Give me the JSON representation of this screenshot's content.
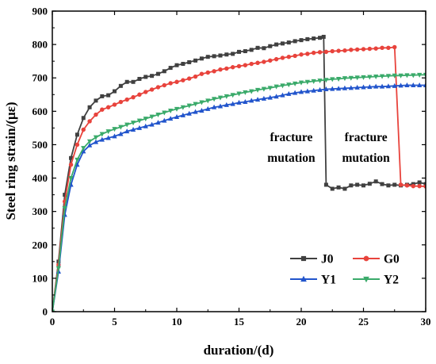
{
  "chart_data": {
    "type": "line",
    "xlabel": "duration/(d)",
    "ylabel": "Steel ring strain/(με)",
    "xlim": [
      0,
      30
    ],
    "ylim": [
      0,
      900
    ],
    "xticks": [
      0,
      5,
      10,
      15,
      20,
      25,
      30
    ],
    "yticks": [
      0,
      100,
      200,
      300,
      400,
      500,
      600,
      700,
      800,
      900
    ],
    "legend_position": "bottom-right",
    "grid": false,
    "annotations": [
      {
        "lines": [
          "fracture",
          "mutation"
        ],
        "x": 19.2,
        "y": 510
      },
      {
        "lines": [
          "fracture",
          "mutation"
        ],
        "x": 25.2,
        "y": 510
      }
    ],
    "series": [
      {
        "name": "J0",
        "color": "#404040",
        "marker": "square",
        "points": [
          [
            0,
            0
          ],
          [
            0.5,
            150
          ],
          [
            1,
            350
          ],
          [
            1.5,
            460
          ],
          [
            2,
            530
          ],
          [
            2.5,
            580
          ],
          [
            3,
            612
          ],
          [
            3.5,
            632
          ],
          [
            4,
            645
          ],
          [
            4.5,
            648
          ],
          [
            5,
            660
          ],
          [
            5.5,
            676
          ],
          [
            6,
            688
          ],
          [
            6.5,
            688
          ],
          [
            7,
            697
          ],
          [
            7.5,
            703
          ],
          [
            8,
            706
          ],
          [
            8.5,
            712
          ],
          [
            9,
            720
          ],
          [
            9.5,
            730
          ],
          [
            10,
            738
          ],
          [
            10.5,
            742
          ],
          [
            11,
            747
          ],
          [
            11.5,
            752
          ],
          [
            12,
            758
          ],
          [
            12.5,
            763
          ],
          [
            13,
            765
          ],
          [
            13.5,
            767
          ],
          [
            14,
            770
          ],
          [
            14.5,
            772
          ],
          [
            15,
            778
          ],
          [
            15.5,
            780
          ],
          [
            16,
            784
          ],
          [
            16.5,
            790
          ],
          [
            17,
            789
          ],
          [
            17.5,
            795
          ],
          [
            18,
            800
          ],
          [
            18.5,
            803
          ],
          [
            19,
            806
          ],
          [
            19.5,
            810
          ],
          [
            20,
            813
          ],
          [
            20.5,
            816
          ],
          [
            21,
            818
          ],
          [
            21.5,
            820
          ],
          [
            21.8,
            823
          ],
          [
            22,
            380
          ],
          [
            22.5,
            368
          ],
          [
            23,
            372
          ],
          [
            23.5,
            368
          ],
          [
            24,
            378
          ],
          [
            24.5,
            380
          ],
          [
            25,
            378
          ],
          [
            25.5,
            383
          ],
          [
            26,
            390
          ],
          [
            26.5,
            382
          ],
          [
            27,
            378
          ],
          [
            27.5,
            380
          ],
          [
            28,
            378
          ],
          [
            28.5,
            380
          ],
          [
            29,
            382
          ],
          [
            29.5,
            387
          ],
          [
            30,
            382
          ]
        ]
      },
      {
        "name": "G0",
        "color": "#e8433c",
        "marker": "circle",
        "points": [
          [
            0,
            0
          ],
          [
            0.5,
            140
          ],
          [
            1,
            330
          ],
          [
            1.5,
            440
          ],
          [
            2,
            500
          ],
          [
            2.5,
            545
          ],
          [
            3,
            570
          ],
          [
            3.5,
            590
          ],
          [
            4,
            605
          ],
          [
            4.5,
            612
          ],
          [
            5,
            620
          ],
          [
            5.5,
            628
          ],
          [
            6,
            635
          ],
          [
            6.5,
            642
          ],
          [
            7,
            650
          ],
          [
            7.5,
            658
          ],
          [
            8,
            665
          ],
          [
            8.5,
            672
          ],
          [
            9,
            678
          ],
          [
            9.5,
            684
          ],
          [
            10,
            688
          ],
          [
            10.5,
            693
          ],
          [
            11,
            698
          ],
          [
            11.5,
            704
          ],
          [
            12,
            712
          ],
          [
            12.5,
            716
          ],
          [
            13,
            720
          ],
          [
            13.5,
            725
          ],
          [
            14,
            728
          ],
          [
            14.5,
            732
          ],
          [
            15,
            735
          ],
          [
            15.5,
            738
          ],
          [
            16,
            742
          ],
          [
            16.5,
            745
          ],
          [
            17,
            748
          ],
          [
            17.5,
            752
          ],
          [
            18,
            756
          ],
          [
            18.5,
            760
          ],
          [
            19,
            763
          ],
          [
            19.5,
            766
          ],
          [
            20,
            770
          ],
          [
            20.5,
            772
          ],
          [
            21,
            775
          ],
          [
            21.5,
            777
          ],
          [
            22,
            778
          ],
          [
            22.5,
            780
          ],
          [
            23,
            781
          ],
          [
            23.5,
            782
          ],
          [
            24,
            784
          ],
          [
            24.5,
            785
          ],
          [
            25,
            786
          ],
          [
            25.5,
            787
          ],
          [
            26,
            788
          ],
          [
            26.5,
            790
          ],
          [
            27,
            790
          ],
          [
            27.5,
            792
          ],
          [
            28,
            380
          ],
          [
            28.5,
            378
          ],
          [
            29,
            376
          ],
          [
            29.5,
            376
          ],
          [
            30,
            375
          ]
        ]
      },
      {
        "name": "Y1",
        "color": "#2255cc",
        "marker": "triangle-up",
        "points": [
          [
            0,
            0
          ],
          [
            0.5,
            120
          ],
          [
            1,
            290
          ],
          [
            1.5,
            380
          ],
          [
            2,
            440
          ],
          [
            2.5,
            480
          ],
          [
            3,
            498
          ],
          [
            3.5,
            508
          ],
          [
            4,
            515
          ],
          [
            4.5,
            520
          ],
          [
            5,
            525
          ],
          [
            5.5,
            532
          ],
          [
            6,
            540
          ],
          [
            6.5,
            545
          ],
          [
            7,
            550
          ],
          [
            7.5,
            555
          ],
          [
            8,
            560
          ],
          [
            8.5,
            566
          ],
          [
            9,
            572
          ],
          [
            9.5,
            578
          ],
          [
            10,
            583
          ],
          [
            10.5,
            588
          ],
          [
            11,
            593
          ],
          [
            11.5,
            598
          ],
          [
            12,
            602
          ],
          [
            12.5,
            607
          ],
          [
            13,
            612
          ],
          [
            13.5,
            615
          ],
          [
            14,
            619
          ],
          [
            14.5,
            622
          ],
          [
            15,
            626
          ],
          [
            15.5,
            628
          ],
          [
            16,
            632
          ],
          [
            16.5,
            635
          ],
          [
            17,
            638
          ],
          [
            17.5,
            641
          ],
          [
            18,
            644
          ],
          [
            18.5,
            648
          ],
          [
            19,
            652
          ],
          [
            19.5,
            655
          ],
          [
            20,
            658
          ],
          [
            20.5,
            660
          ],
          [
            21,
            662
          ],
          [
            21.5,
            664
          ],
          [
            22,
            666
          ],
          [
            22.5,
            667
          ],
          [
            23,
            668
          ],
          [
            23.5,
            669
          ],
          [
            24,
            670
          ],
          [
            24.5,
            671
          ],
          [
            25,
            672
          ],
          [
            25.5,
            673
          ],
          [
            26,
            674
          ],
          [
            26.5,
            674
          ],
          [
            27,
            675
          ],
          [
            27.5,
            676
          ],
          [
            28,
            677
          ],
          [
            28.5,
            678
          ],
          [
            29,
            678
          ],
          [
            29.5,
            678
          ],
          [
            30,
            678
          ]
        ]
      },
      {
        "name": "Y2",
        "color": "#3aaa6a",
        "marker": "triangle-down",
        "points": [
          [
            0,
            0
          ],
          [
            0.5,
            130
          ],
          [
            1,
            310
          ],
          [
            1.5,
            400
          ],
          [
            2,
            455
          ],
          [
            2.5,
            490
          ],
          [
            3,
            510
          ],
          [
            3.5,
            522
          ],
          [
            4,
            532
          ],
          [
            4.5,
            540
          ],
          [
            5,
            547
          ],
          [
            5.5,
            553
          ],
          [
            6,
            560
          ],
          [
            6.5,
            566
          ],
          [
            7,
            572
          ],
          [
            7.5,
            578
          ],
          [
            8,
            584
          ],
          [
            8.5,
            590
          ],
          [
            9,
            596
          ],
          [
            9.5,
            602
          ],
          [
            10,
            607
          ],
          [
            10.5,
            612
          ],
          [
            11,
            617
          ],
          [
            11.5,
            622
          ],
          [
            12,
            627
          ],
          [
            12.5,
            632
          ],
          [
            13,
            637
          ],
          [
            13.5,
            641
          ],
          [
            14,
            645
          ],
          [
            14.5,
            649
          ],
          [
            15,
            653
          ],
          [
            15.5,
            657
          ],
          [
            16,
            660
          ],
          [
            16.5,
            664
          ],
          [
            17,
            667
          ],
          [
            17.5,
            670
          ],
          [
            18,
            674
          ],
          [
            18.5,
            677
          ],
          [
            19,
            680
          ],
          [
            19.5,
            683
          ],
          [
            20,
            686
          ],
          [
            20.5,
            688
          ],
          [
            21,
            690
          ],
          [
            21.5,
            692
          ],
          [
            22,
            694
          ],
          [
            22.5,
            696
          ],
          [
            23,
            697
          ],
          [
            23.5,
            699
          ],
          [
            24,
            700
          ],
          [
            24.5,
            701
          ],
          [
            25,
            702
          ],
          [
            25.5,
            703
          ],
          [
            26,
            704
          ],
          [
            26.5,
            705
          ],
          [
            27,
            706
          ],
          [
            27.5,
            707
          ],
          [
            28,
            707
          ],
          [
            28.5,
            708
          ],
          [
            29,
            708
          ],
          [
            29.5,
            709
          ],
          [
            30,
            709
          ]
        ]
      }
    ]
  }
}
